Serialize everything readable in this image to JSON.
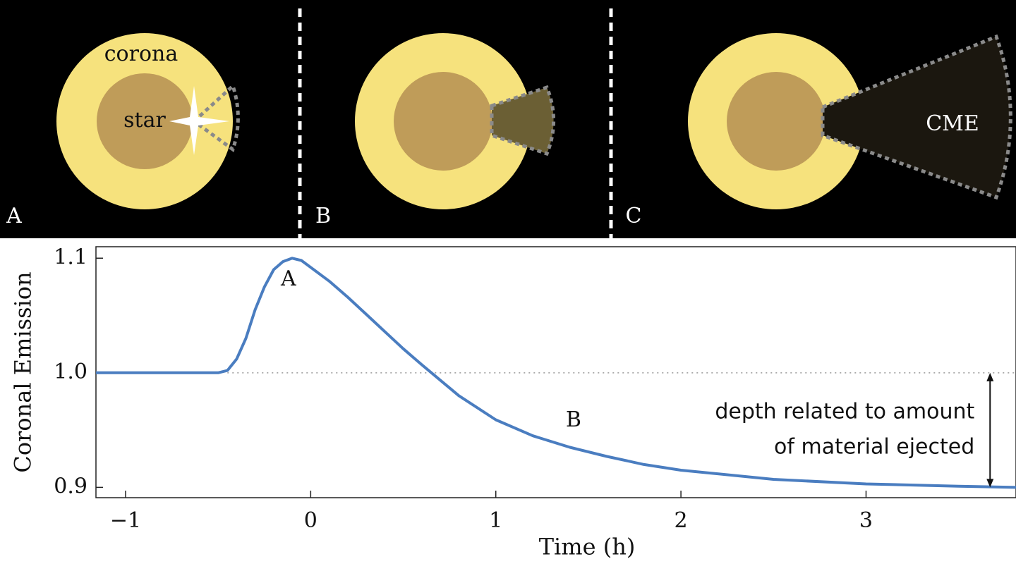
{
  "diagram": {
    "panels": [
      {
        "label": "A",
        "texts": [
          "corona",
          "star"
        ]
      },
      {
        "label": "B"
      },
      {
        "label": "C",
        "texts": [
          "CME"
        ]
      }
    ]
  },
  "chart_data": {
    "type": "line",
    "x_label": "Time (h)",
    "y_label": "Coronal Emission",
    "x": [
      -1.16,
      -0.5,
      -0.45,
      -0.4,
      -0.35,
      -0.3,
      -0.25,
      -0.2,
      -0.15,
      -0.1,
      -0.05,
      0,
      0.1,
      0.2,
      0.3,
      0.4,
      0.5,
      0.6,
      0.8,
      1.0,
      1.2,
      1.4,
      1.6,
      1.8,
      2.0,
      2.5,
      3.0,
      3.5,
      3.81
    ],
    "series": [
      {
        "color": "#4a7dc0",
        "values": [
          1.0,
          1.0,
          1.002,
          1.012,
          1.03,
          1.055,
          1.075,
          1.09,
          1.097,
          1.1,
          1.098,
          1.092,
          1.08,
          1.066,
          1.051,
          1.036,
          1.021,
          1.007,
          0.98,
          0.959,
          0.945,
          0.935,
          0.927,
          0.92,
          0.915,
          0.907,
          0.903,
          0.901,
          0.9
        ]
      }
    ],
    "xlim": [
      -1.16,
      3.81
    ],
    "ylim": [
      0.891,
      1.11
    ],
    "xticks": [
      {
        "value": -1,
        "label": "−1"
      },
      0,
      1,
      2,
      3
    ],
    "yticks": [
      0.9,
      {
        "value": 1,
        "label": "1.0"
      },
      1.1
    ],
    "reference_line": 1.0,
    "reference_start": -0.45,
    "annotations": [
      {
        "text": "A",
        "x": -0.12,
        "y": 1.081
      },
      {
        "text": "B",
        "x": 1.42,
        "y": 0.958
      },
      {
        "lines": [
          "depth related to amount",
          "of material ejected"
        ],
        "x": 3.67,
        "y_from": 1.0,
        "y_to": 0.9
      }
    ]
  }
}
